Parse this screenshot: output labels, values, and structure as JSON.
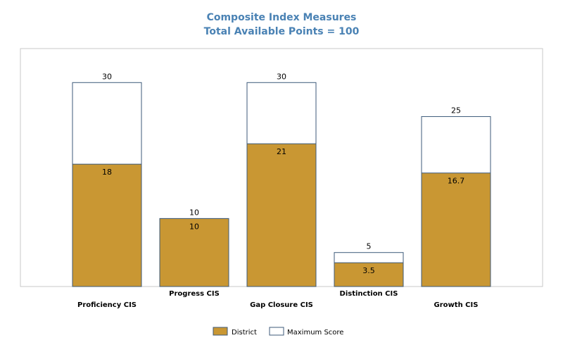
{
  "chart_data": {
    "type": "bar",
    "title": "Composite Index Measures",
    "subtitle": "Total Available Points = 100",
    "categories": [
      "Proficiency CIS",
      "Progress CIS",
      "Gap Closure CIS",
      "Distinction CIS",
      "Growth CIS"
    ],
    "series": [
      {
        "name": "District",
        "values": [
          18,
          10,
          21,
          3.5,
          16.7
        ],
        "labels": [
          "18",
          "10",
          "21",
          "3.5",
          "16.7"
        ]
      },
      {
        "name": "Maximum Score",
        "values": [
          30,
          10,
          30,
          5,
          25
        ],
        "labels": [
          "30",
          "10",
          "30",
          "5",
          "25"
        ]
      }
    ],
    "ylim": [
      0,
      35
    ],
    "grid": false,
    "legend": "bottom-center",
    "colors": {
      "title": "#4a82b4",
      "district": "#c99733",
      "max_fill": "#ffffff",
      "bar_stroke": "#3d5a7a",
      "frame": "#c8c8c8"
    }
  }
}
